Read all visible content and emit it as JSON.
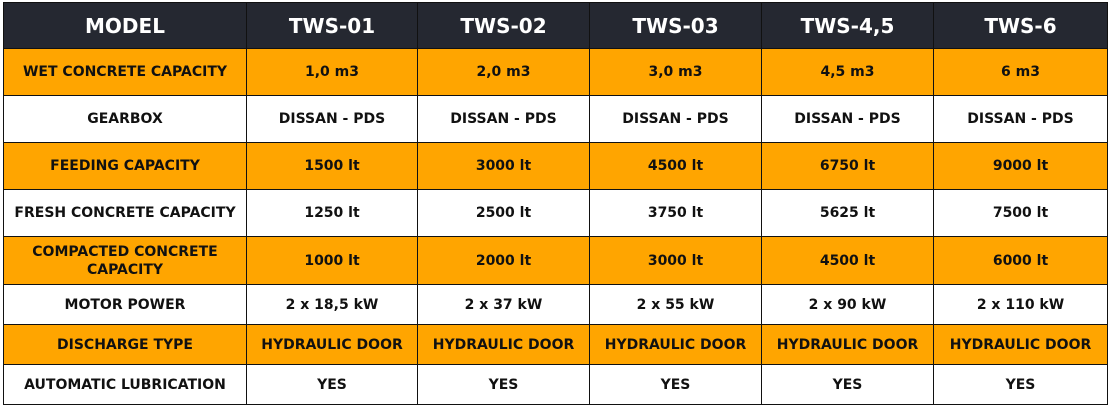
{
  "colors": {
    "header_bg": "#252831",
    "header_text": "#ffffff",
    "highlight_row": "#FFA500",
    "plain_row": "#ffffff",
    "border": "#111111"
  },
  "header": [
    "MODEL",
    "TWS-01",
    "TWS-02",
    "TWS-03",
    "TWS-4,5",
    "TWS-6"
  ],
  "rows": [
    {
      "label": "WET CONCRETE CAPACITY",
      "values": [
        "1,0 m3",
        "2,0 m3",
        "3,0 m3",
        "4,5 m3",
        "6 m3"
      ]
    },
    {
      "label": "GEARBOX",
      "values": [
        "DISSAN - PDS",
        "DISSAN - PDS",
        "DISSAN - PDS",
        "DISSAN - PDS",
        "DISSAN - PDS"
      ]
    },
    {
      "label": "FEEDING CAPACITY",
      "values": [
        "1500 lt",
        "3000 lt",
        "4500 lt",
        "6750 lt",
        "9000 lt"
      ]
    },
    {
      "label": "FRESH CONCRETE CAPACITY",
      "values": [
        "1250 lt",
        "2500 lt",
        "3750 lt",
        "5625 lt",
        "7500 lt"
      ]
    },
    {
      "label": "COMPACTED CONCRETE CAPACITY",
      "values": [
        "1000 lt",
        "2000 lt",
        "3000 lt",
        "4500 lt",
        "6000 lt"
      ]
    },
    {
      "label": "MOTOR POWER",
      "values": [
        "2 x 18,5 kW",
        "2 x 37 kW",
        "2 x 55 kW",
        "2 x 90 kW",
        "2 x 110 kW"
      ]
    },
    {
      "label": "DISCHARGE TYPE",
      "values": [
        "HYDRAULIC DOOR",
        "HYDRAULIC DOOR",
        "HYDRAULIC DOOR",
        "HYDRAULIC DOOR",
        "HYDRAULIC DOOR"
      ]
    },
    {
      "label": "AUTOMATIC LUBRICATION",
      "values": [
        "YES",
        "YES",
        "YES",
        "YES",
        "YES"
      ]
    }
  ]
}
